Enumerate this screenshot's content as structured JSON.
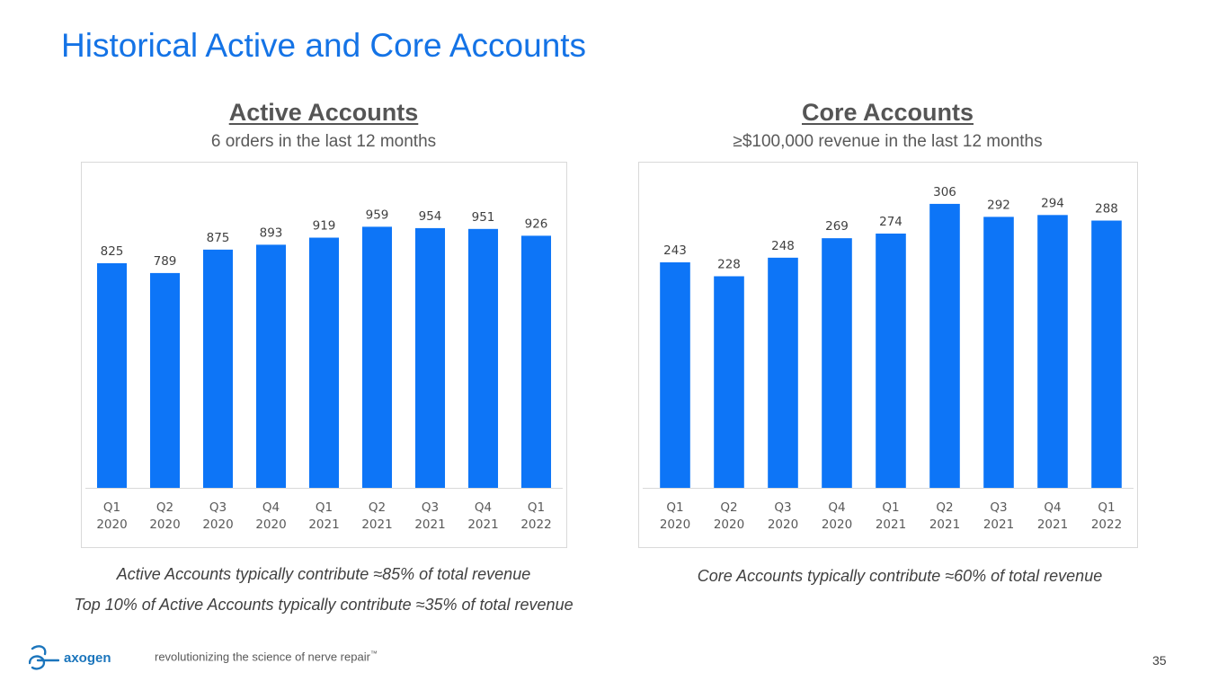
{
  "slide": {
    "title": "Historical Active and Core Accounts",
    "page_number": "35",
    "accent_color": "#1473e6",
    "bar_color": "#0d75f7"
  },
  "footer": {
    "logo_text": "axogen",
    "logo_icon": "axogen-logo-icon",
    "tagline": "revolutionizing the science of nerve repair",
    "tagline_mark": "™"
  },
  "notes": {
    "active_1": "Active Accounts typically contribute ≈85% of total revenue",
    "active_2": "Top 10% of Active Accounts typically contribute ≈35% of total revenue",
    "core_1": "Core Accounts typically contribute ≈60% of total revenue"
  },
  "chart_data": [
    {
      "type": "bar",
      "title": "Active Accounts",
      "subtitle": "6 orders in the last 12 months",
      "categories": [
        [
          "Q1",
          "2020"
        ],
        [
          "Q2",
          "2020"
        ],
        [
          "Q3",
          "2020"
        ],
        [
          "Q4",
          "2020"
        ],
        [
          "Q1",
          "2021"
        ],
        [
          "Q2",
          "2021"
        ],
        [
          "Q3",
          "2021"
        ],
        [
          "Q4",
          "2021"
        ],
        [
          "Q1",
          "2022"
        ]
      ],
      "values": [
        825,
        789,
        875,
        893,
        919,
        959,
        954,
        951,
        926
      ],
      "xlabel": "",
      "ylabel": "",
      "ylim": [
        0,
        1100
      ],
      "grid": false,
      "legend": "none",
      "data_labels": true
    },
    {
      "type": "bar",
      "title": "Core Accounts",
      "subtitle": "≥$100,000 revenue in the last 12 months",
      "categories": [
        [
          "Q1",
          "2020"
        ],
        [
          "Q2",
          "2020"
        ],
        [
          "Q3",
          "2020"
        ],
        [
          "Q4",
          "2020"
        ],
        [
          "Q1",
          "2021"
        ],
        [
          "Q2",
          "2021"
        ],
        [
          "Q3",
          "2021"
        ],
        [
          "Q4",
          "2021"
        ],
        [
          "Q1",
          "2022"
        ]
      ],
      "values": [
        243,
        228,
        248,
        269,
        274,
        306,
        292,
        294,
        288
      ],
      "xlabel": "",
      "ylabel": "",
      "ylim": [
        0,
        350
      ],
      "grid": false,
      "legend": "none",
      "data_labels": true
    }
  ]
}
